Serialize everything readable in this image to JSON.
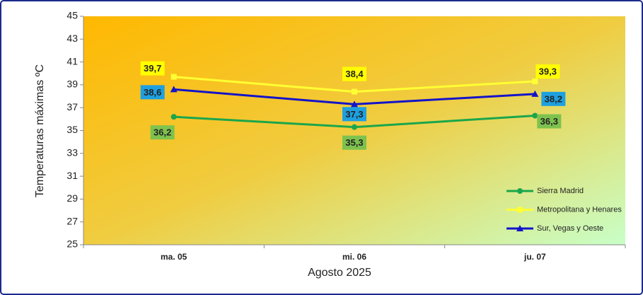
{
  "chart_data": {
    "type": "line",
    "x_label": "Agosto 2025",
    "y_label": "Temperaturas máximas ºC",
    "categories": [
      "ma. 05",
      "mi. 06",
      "ju. 07"
    ],
    "series": [
      {
        "name": "Sierra Madrid",
        "color": "#1ba64b",
        "label_color": "#7ec24e",
        "marker": "circle",
        "values": [
          36.2,
          35.3,
          36.3
        ],
        "value_labels": [
          "36,2",
          "35,3",
          "36,3"
        ]
      },
      {
        "name": "Metropolitana y Henares",
        "color": "#ffff33",
        "label_color": "#ffff00",
        "marker": "square",
        "values": [
          39.7,
          38.4,
          39.3
        ],
        "value_labels": [
          "39,7",
          "38,4",
          "39,3"
        ]
      },
      {
        "name": "Sur, Vegas y Oeste",
        "color": "#1414c8",
        "label_color": "#1ea0e0",
        "marker": "triangle",
        "values": [
          38.6,
          37.3,
          38.2
        ],
        "value_labels": [
          "38,6",
          "37,3",
          "38,2"
        ]
      }
    ],
    "ylim": [
      25,
      45
    ],
    "yticks": [
      25,
      27,
      29,
      31,
      33,
      35,
      37,
      39,
      41,
      43,
      45
    ],
    "legend": "lower right"
  }
}
